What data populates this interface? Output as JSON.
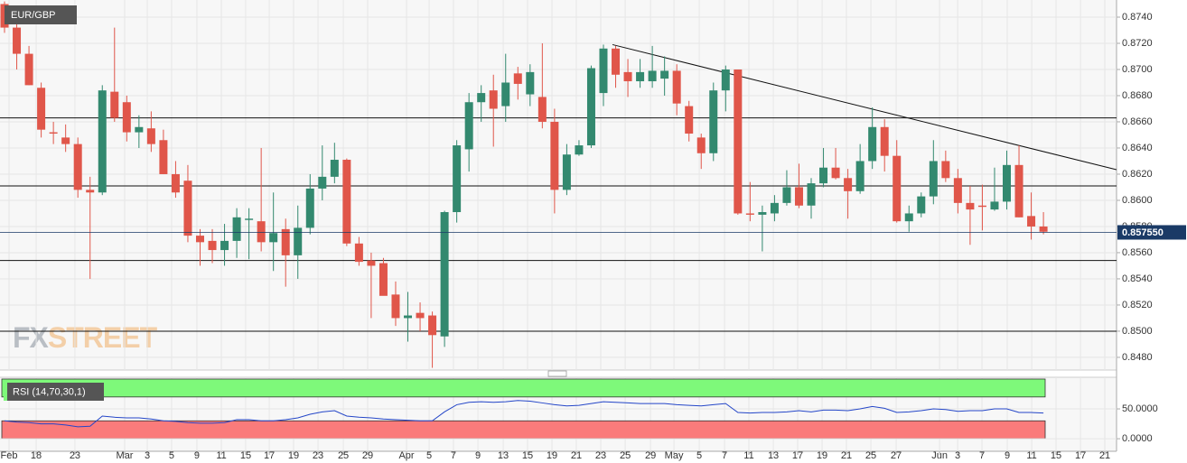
{
  "chart_data": [
    {
      "type": "candlestick",
      "title": "EUR/GBP",
      "watermark": [
        "FX",
        "STREET"
      ],
      "x": [
        0,
        1,
        2,
        3,
        4,
        5,
        6,
        7,
        8,
        9,
        10,
        11,
        12,
        13,
        14,
        15,
        16,
        17,
        18,
        19,
        20,
        21,
        22,
        23,
        24,
        25,
        26,
        27,
        28,
        29,
        30,
        31,
        32,
        33,
        34,
        35,
        36,
        37,
        38,
        39,
        40,
        41,
        42,
        43,
        44,
        45,
        46,
        47,
        48,
        49,
        50,
        51,
        52,
        53,
        54,
        55,
        56,
        57,
        58,
        59,
        60,
        61,
        62,
        63,
        64,
        65,
        66,
        67,
        68,
        69,
        70,
        71,
        72,
        73,
        74,
        75,
        76,
        77,
        78,
        79,
        80,
        81,
        82,
        83,
        84,
        85
      ],
      "open": [
        0.875,
        0.8732,
        0.8712,
        0.8686,
        0.8652,
        0.8648,
        0.8643,
        0.8608,
        0.8606,
        0.8683,
        0.8675,
        0.8652,
        0.8655,
        0.8646,
        0.862,
        0.8615,
        0.8573,
        0.8569,
        0.8562,
        0.8569,
        0.8585,
        0.8584,
        0.8568,
        0.8578,
        0.8558,
        0.8579,
        0.8609,
        0.8618,
        0.8631,
        0.8567,
        0.8554,
        0.8552,
        0.8528,
        0.851,
        0.8514,
        0.8512,
        0.8496,
        0.8591,
        0.8639,
        0.8675,
        0.8684,
        0.8672,
        0.8697,
        0.8681,
        0.8679,
        0.866,
        0.8608,
        0.8635,
        0.8642,
        0.8682,
        0.8716,
        0.8698,
        0.8691,
        0.8691,
        0.8693,
        0.8699,
        0.8672,
        0.8648,
        0.8636,
        0.8684,
        0.87,
        0.859,
        0.8589,
        0.859,
        0.8598,
        0.861,
        0.8596,
        0.8613,
        0.8625,
        0.8617,
        0.8607,
        0.863,
        0.8656,
        0.8634,
        0.8584,
        0.859,
        0.8603,
        0.863,
        0.8617,
        0.8598,
        0.8596,
        0.8593,
        0.8599,
        0.8627,
        0.8588,
        0.858
      ],
      "high": [
        0.8752,
        0.874,
        0.8718,
        0.869,
        0.866,
        0.8658,
        0.8648,
        0.8618,
        0.8688,
        0.8732,
        0.868,
        0.8665,
        0.8668,
        0.8654,
        0.863,
        0.8627,
        0.8578,
        0.8578,
        0.8582,
        0.8594,
        0.8594,
        0.864,
        0.8606,
        0.8586,
        0.8596,
        0.862,
        0.8642,
        0.8644,
        0.8632,
        0.8572,
        0.856,
        0.8556,
        0.8538,
        0.853,
        0.8522,
        0.8515,
        0.8592,
        0.8646,
        0.8682,
        0.8688,
        0.8696,
        0.8712,
        0.8702,
        0.8704,
        0.872,
        0.867,
        0.8643,
        0.8646,
        0.8703,
        0.8719,
        0.8718,
        0.8708,
        0.8708,
        0.8718,
        0.871,
        0.8704,
        0.8676,
        0.8651,
        0.869,
        0.8703,
        0.87,
        0.8614,
        0.8596,
        0.8604,
        0.8623,
        0.8628,
        0.8617,
        0.864,
        0.864,
        0.8624,
        0.8643,
        0.8671,
        0.8662,
        0.8646,
        0.8596,
        0.8606,
        0.8646,
        0.8638,
        0.8624,
        0.8611,
        0.8612,
        0.8625,
        0.8638,
        0.8642,
        0.8606,
        0.8591
      ],
      "low": [
        0.8728,
        0.87,
        0.8688,
        0.8648,
        0.8643,
        0.8637,
        0.8602,
        0.854,
        0.8604,
        0.866,
        0.8645,
        0.864,
        0.8637,
        0.862,
        0.8602,
        0.8568,
        0.855,
        0.8552,
        0.855,
        0.8556,
        0.8555,
        0.8561,
        0.8546,
        0.8534,
        0.854,
        0.8574,
        0.86,
        0.8613,
        0.8565,
        0.855,
        0.851,
        0.8528,
        0.8504,
        0.8492,
        0.85,
        0.8472,
        0.8488,
        0.8583,
        0.8622,
        0.866,
        0.8641,
        0.866,
        0.8677,
        0.8672,
        0.8655,
        0.859,
        0.8604,
        0.8634,
        0.864,
        0.8672,
        0.8686,
        0.8679,
        0.8686,
        0.8686,
        0.868,
        0.8665,
        0.8645,
        0.8624,
        0.863,
        0.8668,
        0.8589,
        0.8584,
        0.8561,
        0.8584,
        0.8596,
        0.8594,
        0.8586,
        0.861,
        0.8616,
        0.8586,
        0.8605,
        0.8624,
        0.8622,
        0.8583,
        0.8576,
        0.8587,
        0.8597,
        0.8614,
        0.859,
        0.8566,
        0.8577,
        0.8592,
        0.8593,
        0.8587,
        0.857,
        0.8574
      ],
      "close": [
        0.8732,
        0.8712,
        0.8688,
        0.8654,
        0.8651,
        0.8643,
        0.8608,
        0.8606,
        0.8684,
        0.8663,
        0.8652,
        0.8656,
        0.8643,
        0.862,
        0.8606,
        0.8573,
        0.8568,
        0.8562,
        0.8569,
        0.8587,
        0.8586,
        0.8568,
        0.8575,
        0.8558,
        0.8579,
        0.8609,
        0.8618,
        0.8631,
        0.8567,
        0.8553,
        0.855,
        0.8527,
        0.851,
        0.8512,
        0.851,
        0.8497,
        0.8591,
        0.8642,
        0.8675,
        0.8682,
        0.867,
        0.869,
        0.8689,
        0.8698,
        0.866,
        0.8608,
        0.8635,
        0.8642,
        0.8701,
        0.8716,
        0.8696,
        0.8691,
        0.8698,
        0.8699,
        0.8699,
        0.8674,
        0.8651,
        0.8636,
        0.8684,
        0.87,
        0.859,
        0.8589,
        0.8591,
        0.8598,
        0.861,
        0.8596,
        0.8613,
        0.8625,
        0.8617,
        0.8607,
        0.863,
        0.8656,
        0.8634,
        0.8584,
        0.859,
        0.8603,
        0.863,
        0.8617,
        0.8598,
        0.8593,
        0.8595,
        0.8599,
        0.8627,
        0.8587,
        0.858,
        0.8576
      ],
      "up_color": "#33896f",
      "down_color": "#e0564a",
      "xlim": [
        -0.37,
        90.98
      ],
      "ylim": [
        0.84703,
        0.87531
      ],
      "xticks": [
        {
          "value": 0.37,
          "label": "Feb"
        },
        {
          "value": 2.59,
          "label": "18"
        },
        {
          "value": 5.76,
          "label": "23"
        },
        {
          "value": 9.83,
          "label": "Mar"
        },
        {
          "value": 11.68,
          "label": "3"
        },
        {
          "value": 13.67,
          "label": "5"
        },
        {
          "value": 15.74,
          "label": "9"
        },
        {
          "value": 17.74,
          "label": "11"
        },
        {
          "value": 19.73,
          "label": "15"
        },
        {
          "value": 21.66,
          "label": "17"
        },
        {
          "value": 23.65,
          "label": "19"
        },
        {
          "value": 25.65,
          "label": "23"
        },
        {
          "value": 27.72,
          "label": "25"
        },
        {
          "value": 29.71,
          "label": "29"
        },
        {
          "value": 32.89,
          "label": "Apr"
        },
        {
          "value": 34.74,
          "label": "5"
        },
        {
          "value": 36.73,
          "label": "7"
        },
        {
          "value": 38.73,
          "label": "9"
        },
        {
          "value": 40.8,
          "label": "13"
        },
        {
          "value": 42.79,
          "label": "15"
        },
        {
          "value": 44.79,
          "label": "19"
        },
        {
          "value": 46.78,
          "label": "21"
        },
        {
          "value": 48.78,
          "label": "23"
        },
        {
          "value": 50.78,
          "label": "25"
        },
        {
          "value": 52.85,
          "label": "29"
        },
        {
          "value": 54.77,
          "label": "May"
        },
        {
          "value": 56.84,
          "label": "5"
        },
        {
          "value": 58.91,
          "label": "7"
        },
        {
          "value": 60.9,
          "label": "11"
        },
        {
          "value": 62.9,
          "label": "13"
        },
        {
          "value": 64.89,
          "label": "17"
        },
        {
          "value": 66.89,
          "label": "19"
        },
        {
          "value": 68.88,
          "label": "21"
        },
        {
          "value": 70.88,
          "label": "25"
        },
        {
          "value": 72.95,
          "label": "27"
        },
        {
          "value": 76.5,
          "label": "Jun"
        },
        {
          "value": 77.98,
          "label": "3"
        },
        {
          "value": 79.97,
          "label": "7"
        },
        {
          "value": 82.04,
          "label": "9"
        },
        {
          "value": 84.04,
          "label": "11"
        },
        {
          "value": 86.03,
          "label": "15"
        },
        {
          "value": 88.03,
          "label": "17"
        },
        {
          "value": 90.02,
          "label": "21"
        }
      ],
      "yticks": [
        {
          "value": 0.874,
          "label": "0.8740"
        },
        {
          "value": 0.872,
          "label": "0.8720"
        },
        {
          "value": 0.87,
          "label": "0.8700"
        },
        {
          "value": 0.868,
          "label": "0.8680"
        },
        {
          "value": 0.866,
          "label": "0.8660"
        },
        {
          "value": 0.864,
          "label": "0.8640"
        },
        {
          "value": 0.862,
          "label": "0.8620"
        },
        {
          "value": 0.86,
          "label": "0.8600"
        },
        {
          "value": 0.858,
          "label": "0.8580"
        },
        {
          "value": 0.856,
          "label": "0.8560"
        },
        {
          "value": 0.854,
          "label": "0.8540"
        },
        {
          "value": 0.852,
          "label": "0.8520"
        },
        {
          "value": 0.85,
          "label": "0.8500"
        },
        {
          "value": 0.848,
          "label": "0.8480"
        }
      ],
      "grid": true,
      "levels": [
        0.8663,
        0.8611,
        0.8554,
        0.85
      ],
      "trendline": {
        "x": [
          49.74,
          90.98
        ],
        "y": [
          0.8719,
          0.86234
        ]
      },
      "last_price": {
        "value": 0.85755,
        "label": "0.857550"
      }
    },
    {
      "type": "line",
      "title": "RSI (14,70,30,1)",
      "color": "#2446c8",
      "x": [
        0,
        1,
        2,
        3,
        4,
        5,
        6,
        7,
        8,
        9,
        10,
        11,
        12,
        13,
        14,
        15,
        16,
        17,
        18,
        19,
        20,
        21,
        22,
        23,
        24,
        25,
        26,
        27,
        28,
        29,
        30,
        31,
        32,
        33,
        34,
        35,
        36,
        37,
        38,
        39,
        40,
        41,
        42,
        43,
        44,
        45,
        46,
        47,
        48,
        49,
        50,
        51,
        52,
        53,
        54,
        55,
        56,
        57,
        58,
        59,
        60,
        61,
        62,
        63,
        64,
        65,
        66,
        67,
        68,
        69,
        70,
        71,
        72,
        73,
        74,
        75,
        76,
        77,
        78,
        79,
        80,
        81,
        82,
        83,
        84,
        85
      ],
      "values": [
        30,
        28,
        27,
        25,
        25,
        23,
        20,
        21,
        38,
        36,
        35,
        35,
        33,
        30,
        29,
        27,
        26,
        26,
        27,
        32,
        32,
        30,
        30,
        32,
        35,
        41,
        45,
        47,
        38,
        36,
        35,
        33,
        32,
        31,
        30,
        30,
        45,
        57,
        61,
        62,
        61,
        62,
        64,
        63,
        60,
        57,
        55,
        56,
        59,
        62,
        61,
        60,
        59,
        59,
        59,
        57,
        56,
        55,
        57,
        59,
        44,
        43,
        44,
        44,
        45,
        47,
        45,
        48,
        48,
        47,
        50,
        54,
        51,
        44,
        45,
        47,
        50,
        49,
        46,
        47,
        47,
        50,
        50,
        44,
        44,
        43
      ],
      "upper_band": [
        70,
        100
      ],
      "lower_band": [
        0,
        30
      ],
      "ylim": [
        -21,
        103
      ],
      "yticks": [
        {
          "value": 50,
          "label": "50.0000"
        },
        {
          "value": 0,
          "label": "0.0000"
        }
      ]
    }
  ]
}
